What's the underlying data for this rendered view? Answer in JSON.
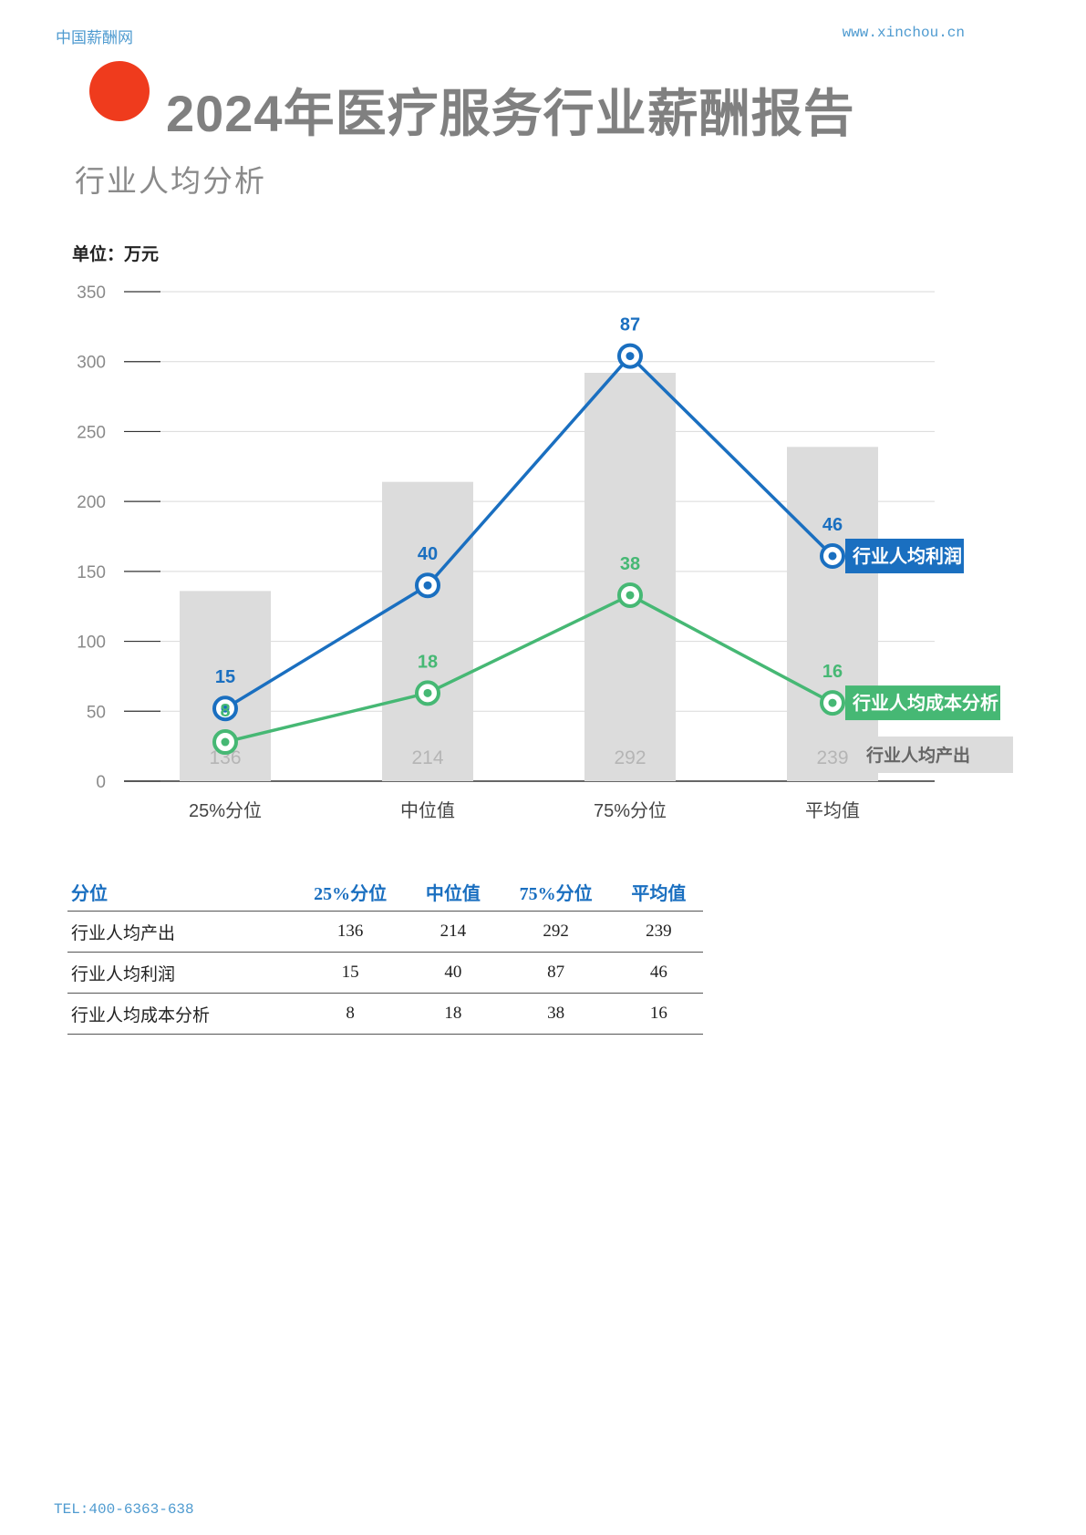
{
  "header": {
    "site_name": "中国薪酬网",
    "site_url": "www.xinchou.cn"
  },
  "page": {
    "title": "2024年医疗服务行业薪酬报告",
    "subtitle": "行业人均分析",
    "unit_label": "单位：万元"
  },
  "colors": {
    "accent_dot": "#ef3b1d",
    "profit": "#1a6fc0",
    "cost": "#46b874",
    "output": "#dcdcdc"
  },
  "chart_data": {
    "type": "bar",
    "categories": [
      "25%分位",
      "中位值",
      "75%分位",
      "平均值"
    ],
    "ylim": [
      0,
      350
    ],
    "yticks": [
      0,
      50,
      100,
      150,
      200,
      250,
      300,
      350
    ],
    "series": [
      {
        "name": "行业人均产出",
        "kind": "bar",
        "values": [
          136,
          214,
          292,
          239
        ]
      },
      {
        "name": "行业人均利润",
        "kind": "line",
        "values": [
          52,
          140,
          304,
          161
        ],
        "labels": [
          "15",
          "40",
          "87",
          "46"
        ]
      },
      {
        "name": "行业人均成本分析",
        "kind": "line",
        "values": [
          28,
          63,
          133,
          56
        ],
        "labels": [
          "8",
          "18",
          "38",
          "16"
        ]
      }
    ],
    "legend_placement": "right"
  },
  "table": {
    "headers": [
      "分位",
      "25%分位",
      "中位值",
      "75%分位",
      "平均值"
    ],
    "rows": [
      [
        "行业人均产出",
        "136",
        "214",
        "292",
        "239"
      ],
      [
        "行业人均利润",
        "15",
        "40",
        "87",
        "46"
      ],
      [
        "行业人均成本分析",
        "8",
        "18",
        "38",
        "16"
      ]
    ]
  },
  "footer": {
    "tel": "TEL:400-6363-638"
  }
}
